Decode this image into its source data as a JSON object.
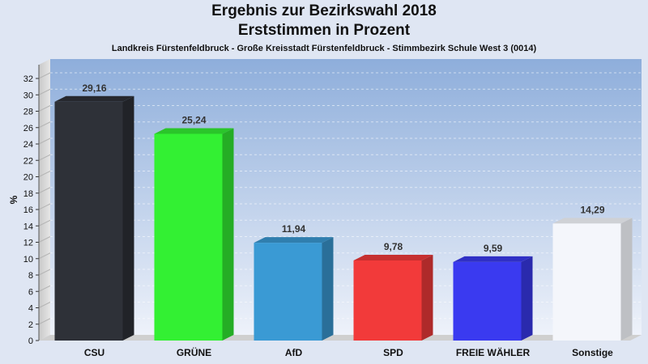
{
  "chart_data": {
    "type": "bar",
    "title": "Ergebnis zur Bezirkswahl 2018",
    "title2": "Erststimmen in Prozent",
    "subtitle": "Landkreis Fürstenfeldbruck - Große Kreisstadt Fürstenfeldbruck - Stimmbezirk Schule West 3 (0014)",
    "ylabel": "%",
    "ylim": [
      0,
      32
    ],
    "ytick_step": 2,
    "grid": true,
    "categories": [
      "CSU",
      "GRÜNE",
      "AfD",
      "SPD",
      "FREIE WÄHLER",
      "Sonstige"
    ],
    "values": [
      29.16,
      25.24,
      11.94,
      9.78,
      9.59,
      14.29
    ],
    "value_labels": [
      "29,16",
      "25,24",
      "11,94",
      "9,78",
      "9,59",
      "14,29"
    ],
    "colors": [
      "#2e3138",
      "#33f033",
      "#3a9ad4",
      "#f23a3a",
      "#3a3af0",
      "#f4f6fb"
    ]
  }
}
